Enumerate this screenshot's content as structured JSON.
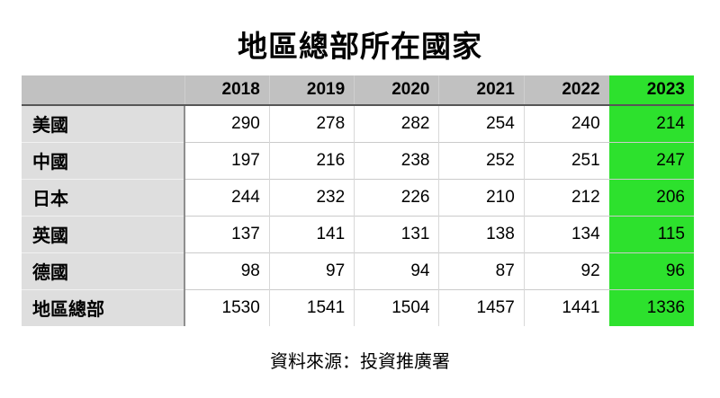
{
  "title": "地區總部所在國家",
  "source": "資料來源：投資推廣署",
  "colors": {
    "header_bg": "#c1c1c1",
    "label_bg": "#dedede",
    "highlight": "#2de12d",
    "text": "#000000"
  },
  "chart_data": {
    "type": "table",
    "title": "地區總部所在國家",
    "columns": [
      "",
      "2018",
      "2019",
      "2020",
      "2021",
      "2022",
      "2023"
    ],
    "highlight_column": "2023",
    "rows": [
      {
        "label": "美國",
        "values": [
          290,
          278,
          282,
          254,
          240,
          214
        ]
      },
      {
        "label": "中國",
        "values": [
          197,
          216,
          238,
          252,
          251,
          247
        ]
      },
      {
        "label": "日本",
        "values": [
          244,
          232,
          226,
          210,
          212,
          206
        ]
      },
      {
        "label": "英國",
        "values": [
          137,
          141,
          131,
          138,
          134,
          115
        ]
      },
      {
        "label": "德國",
        "values": [
          98,
          97,
          94,
          87,
          92,
          96
        ]
      },
      {
        "label": "地區總部",
        "values": [
          1530,
          1541,
          1504,
          1457,
          1441,
          1336
        ]
      }
    ],
    "source": "資料來源：投資推廣署"
  }
}
